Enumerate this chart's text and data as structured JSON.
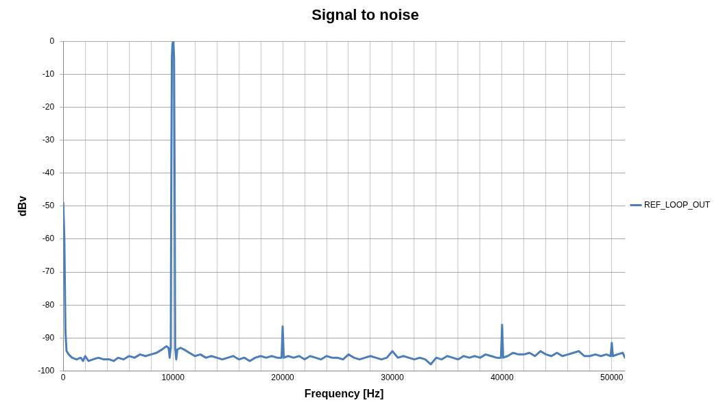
{
  "chart_data": {
    "type": "line",
    "title": "Signal to noise",
    "xlabel": "Frequency [Hz]",
    "ylabel": "dBv",
    "xlim": [
      0,
      51200
    ],
    "ylim": [
      -100,
      0
    ],
    "xticks": [
      0,
      {
        "value": 2000,
        "label": null
      },
      {
        "value": 4000,
        "label": null
      },
      {
        "value": 6000,
        "label": null
      },
      {
        "value": 8000,
        "label": null
      },
      10000,
      {
        "value": 12000,
        "label": null
      },
      {
        "value": 14000,
        "label": null
      },
      {
        "value": 16000,
        "label": null
      },
      {
        "value": 18000,
        "label": null
      },
      20000,
      {
        "value": 22000,
        "label": null
      },
      {
        "value": 24000,
        "label": null
      },
      {
        "value": 26000,
        "label": null
      },
      {
        "value": 28000,
        "label": null
      },
      30000,
      {
        "value": 32000,
        "label": null
      },
      {
        "value": 34000,
        "label": null
      },
      {
        "value": 36000,
        "label": null
      },
      {
        "value": 38000,
        "label": null
      },
      40000,
      {
        "value": 42000,
        "label": null
      },
      {
        "value": 44000,
        "label": null
      },
      {
        "value": 46000,
        "label": null
      },
      {
        "value": 48000,
        "label": null
      },
      50000
    ],
    "yticks": [
      0,
      -10,
      -20,
      -30,
      -40,
      -50,
      -60,
      -70,
      -80,
      -90,
      -100
    ],
    "grid": true,
    "legend": "right",
    "marker": "none",
    "line_style": "solid",
    "series": [
      {
        "name": "REF_LOOP_OUT",
        "color": "#4a7ebb",
        "x": [
          0,
          100,
          200,
          300,
          500,
          800,
          1200,
          1600,
          1800,
          2000,
          2300,
          2700,
          3200,
          3700,
          4200,
          4600,
          5000,
          5500,
          6000,
          6500,
          7000,
          7500,
          8000,
          8500,
          9000,
          9400,
          9600,
          9700,
          9800,
          9850,
          9900,
          9950,
          10000,
          10050,
          10100,
          10150,
          10200,
          10300,
          10400,
          10700,
          11000,
          11500,
          12000,
          12500,
          13000,
          13500,
          14000,
          14500,
          15000,
          15500,
          16000,
          16500,
          17000,
          17500,
          18000,
          18500,
          19000,
          19500,
          19900,
          20000,
          20100,
          20500,
          21000,
          21500,
          22000,
          22500,
          23000,
          23500,
          24000,
          24500,
          25000,
          25500,
          26000,
          26500,
          27000,
          27500,
          28000,
          28500,
          29000,
          29500,
          30000,
          30500,
          31000,
          31500,
          32000,
          32500,
          33000,
          33500,
          34000,
          34500,
          35000,
          35500,
          36000,
          36500,
          37000,
          37500,
          38000,
          38500,
          39000,
          39500,
          39900,
          40000,
          40100,
          40500,
          41000,
          41500,
          42000,
          42500,
          43000,
          43500,
          44000,
          44500,
          45000,
          45500,
          46000,
          46500,
          47000,
          47500,
          48000,
          48500,
          49000,
          49500,
          49900,
          50000,
          50100,
          50500,
          51000,
          51200
        ],
        "values": [
          -49,
          -60,
          -88,
          -94,
          -95,
          -96,
          -96.5,
          -96,
          -97,
          -95.5,
          -97,
          -96.5,
          -96,
          -96.5,
          -96.5,
          -97,
          -96,
          -96.5,
          -95.5,
          -96,
          -95,
          -95.5,
          -95,
          -94.5,
          -93.5,
          -92.5,
          -93,
          -96,
          -93,
          -40,
          -5,
          -1,
          0,
          -1,
          -5,
          -40,
          -93,
          -96.5,
          -93.5,
          -93,
          -93.5,
          -94.5,
          -95.5,
          -95,
          -96,
          -95.5,
          -96,
          -96.5,
          -96,
          -95.5,
          -96.5,
          -96,
          -97,
          -96,
          -95.5,
          -96,
          -95.5,
          -96,
          -96,
          -86.5,
          -96,
          -95.5,
          -96,
          -95.5,
          -96.5,
          -95.5,
          -96,
          -96.5,
          -95.5,
          -96,
          -96,
          -96.5,
          -95,
          -96,
          -96.5,
          -96,
          -95.5,
          -96,
          -96.5,
          -96,
          -94,
          -96,
          -95.5,
          -96,
          -96.5,
          -96,
          -96.5,
          -98,
          -96,
          -96.5,
          -95.5,
          -96,
          -96.5,
          -95.5,
          -96,
          -95.5,
          -96,
          -95,
          -95.5,
          -96,
          -96,
          -86,
          -96,
          -95.5,
          -94.5,
          -95,
          -95,
          -94.5,
          -95.5,
          -94,
          -95,
          -95.5,
          -94.5,
          -95.5,
          -95,
          -94.5,
          -94,
          -95.5,
          -95.5,
          -95,
          -95.5,
          -95,
          -95.5,
          -91.5,
          -95.5,
          -95,
          -94.5,
          -96
        ]
      }
    ]
  }
}
